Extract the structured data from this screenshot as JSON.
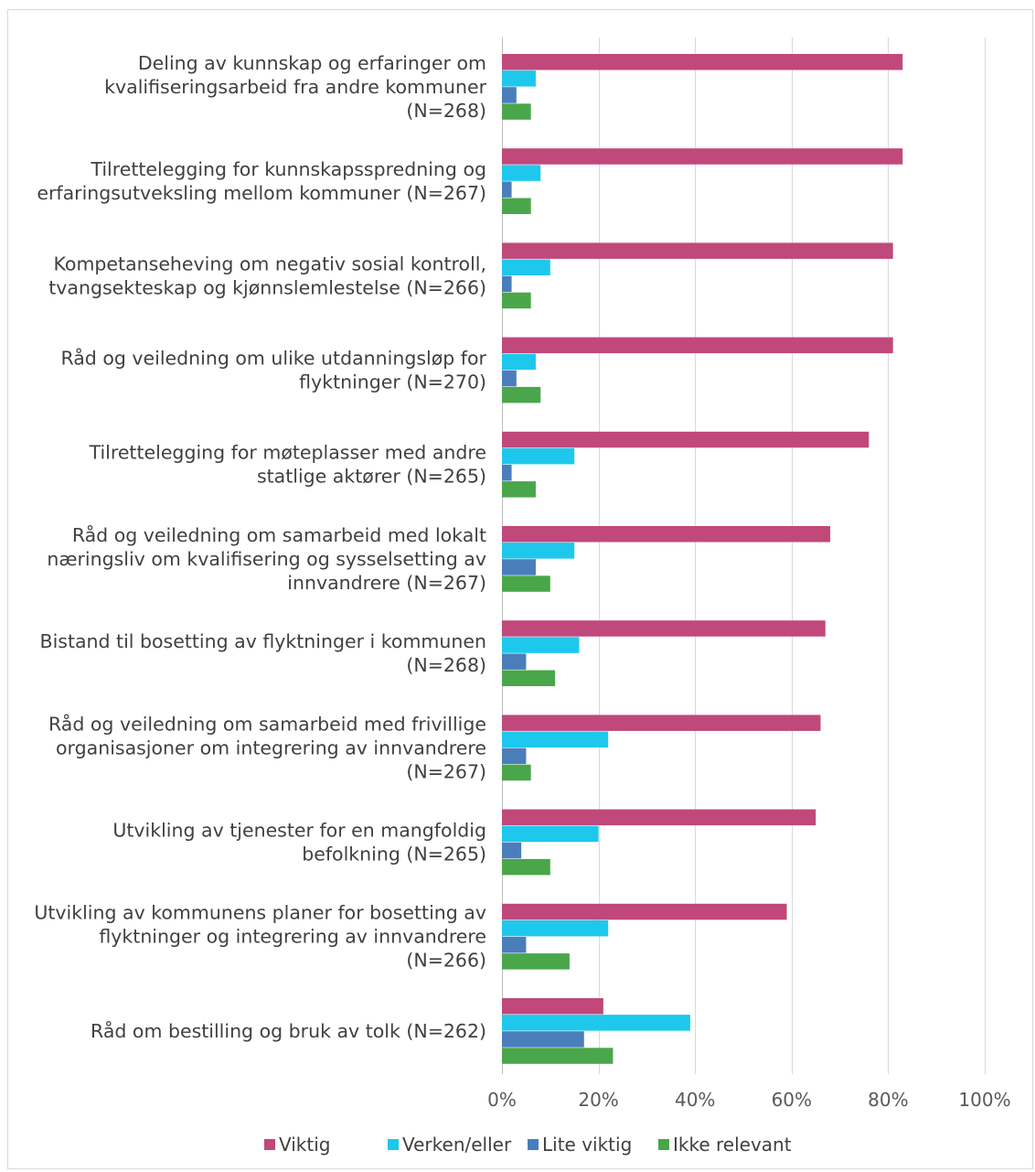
{
  "chart_data": {
    "type": "bar",
    "orientation": "horizontal",
    "title": "",
    "xlabel": "",
    "ylabel": "",
    "xlim": [
      0,
      100
    ],
    "xticks": [
      "0%",
      "20%",
      "40%",
      "60%",
      "80%",
      "100%"
    ],
    "grid": true,
    "legend_position": "bottom",
    "categories": [
      [
        "Deling av kunnskap og erfaringer om",
        "kvalifiseringsarbeid fra andre kommuner",
        "(N=268)"
      ],
      [
        "Tilrettelegging for kunnskapsspredning og",
        "erfaringsutveksling mellom kommuner (N=267)"
      ],
      [
        "Kompetanseheving om negativ sosial kontroll,",
        "tvangsekteskap og kjønnslemlestelse (N=266)"
      ],
      [
        "Råd og veiledning om ulike utdanningsløp for",
        "flyktninger (N=270)"
      ],
      [
        "Tilrettelegging for møteplasser med andre",
        "statlige aktører (N=265)"
      ],
      [
        "Råd og veiledning om samarbeid med lokalt",
        "næringsliv om kvalifisering og sysselsetting av",
        "innvandrere (N=267)"
      ],
      [
        "Bistand til bosetting av flyktninger i kommunen",
        "(N=268)"
      ],
      [
        "Råd og veiledning om samarbeid med frivillige",
        "organisasjoner om integrering av innvandrere",
        "(N=267)"
      ],
      [
        "Utvikling av tjenester for en mangfoldig",
        "befolkning (N=265)"
      ],
      [
        "Utvikling av kommunens planer for bosetting av",
        "flyktninger og integrering av innvandrere",
        "(N=266)"
      ],
      [
        "Råd om bestilling og bruk av tolk (N=262)"
      ]
    ],
    "series": [
      {
        "name": "Viktig",
        "color": "#c0487a",
        "values": [
          83,
          83,
          81,
          81,
          76,
          68,
          67,
          66,
          65,
          59,
          21
        ]
      },
      {
        "name": "Verken/eller",
        "color": "#1ec8ec",
        "values": [
          7,
          8,
          10,
          7,
          15,
          15,
          16,
          22,
          20,
          22,
          39
        ]
      },
      {
        "name": "Lite viktig",
        "color": "#4a7ebb",
        "values": [
          3,
          2,
          2,
          3,
          2,
          7,
          5,
          5,
          4,
          5,
          17
        ]
      },
      {
        "name": "Ikke relevant",
        "color": "#4aa64a",
        "values": [
          6,
          6,
          6,
          8,
          7,
          10,
          11,
          6,
          10,
          14,
          23
        ]
      }
    ]
  }
}
